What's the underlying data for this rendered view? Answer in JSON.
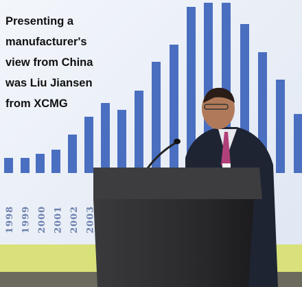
{
  "caption": {
    "lines": [
      "Presenting a",
      "manufacturer's",
      "view from China",
      "was Liu Jiansen",
      "from XCMG"
    ]
  },
  "screen_labels": [
    "1998",
    "1999",
    "2000",
    "2001",
    "2002",
    "2003"
  ]
}
